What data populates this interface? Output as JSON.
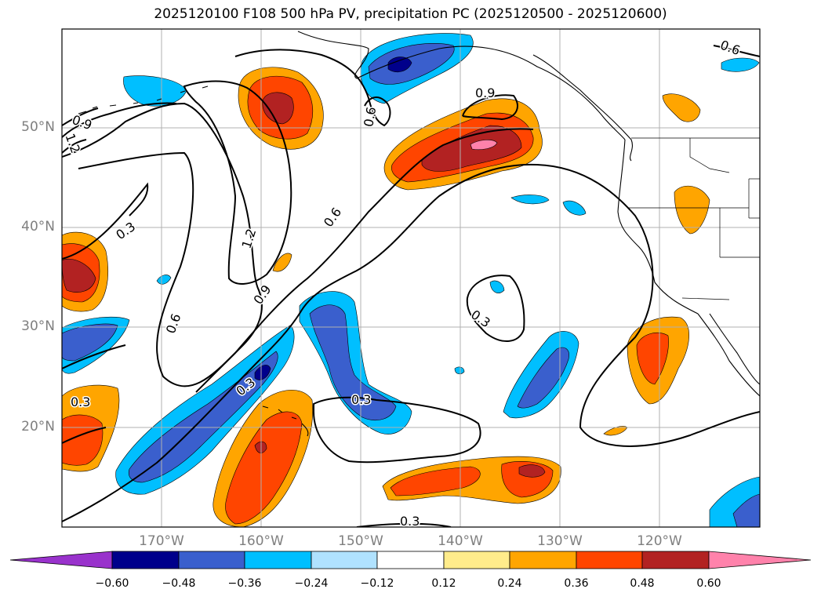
{
  "title": "2025120100 F108 500 hPa PV, precipitation PC (2025120500 - 2025120600)",
  "map": {
    "lat_labels": [
      "50°N",
      "40°N",
      "30°N",
      "20°N"
    ],
    "lon_labels": [
      "170°W",
      "160°W",
      "150°W",
      "140°W",
      "130°W",
      "120°W"
    ],
    "pv_contour_labels": [
      "0.3",
      "0.3",
      "0.3",
      "0.3",
      "0.3",
      "0.3",
      "0.6",
      "0.6",
      "0.6",
      "0.6",
      "0.9",
      "0.9",
      "0.9",
      "1.2",
      "1.2"
    ],
    "extent": {
      "lon_min": -180,
      "lon_max": -110,
      "lat_min": 10,
      "lat_max": 60
    },
    "grid": true
  },
  "colorbar": {
    "ticks": [
      "−0.60",
      "−0.48",
      "−0.36",
      "−0.24",
      "−0.12",
      "0.12",
      "0.24",
      "0.36",
      "0.48",
      "0.60"
    ],
    "colors": [
      "#9932CC",
      "#00008B",
      "#3A5FCD",
      "#00BFFF",
      "#B0E2FF",
      "#FFFFFF",
      "#FFEC8B",
      "#FFA500",
      "#FF4500",
      "#B22222",
      "#FF82AB"
    ],
    "extend": "both"
  }
}
